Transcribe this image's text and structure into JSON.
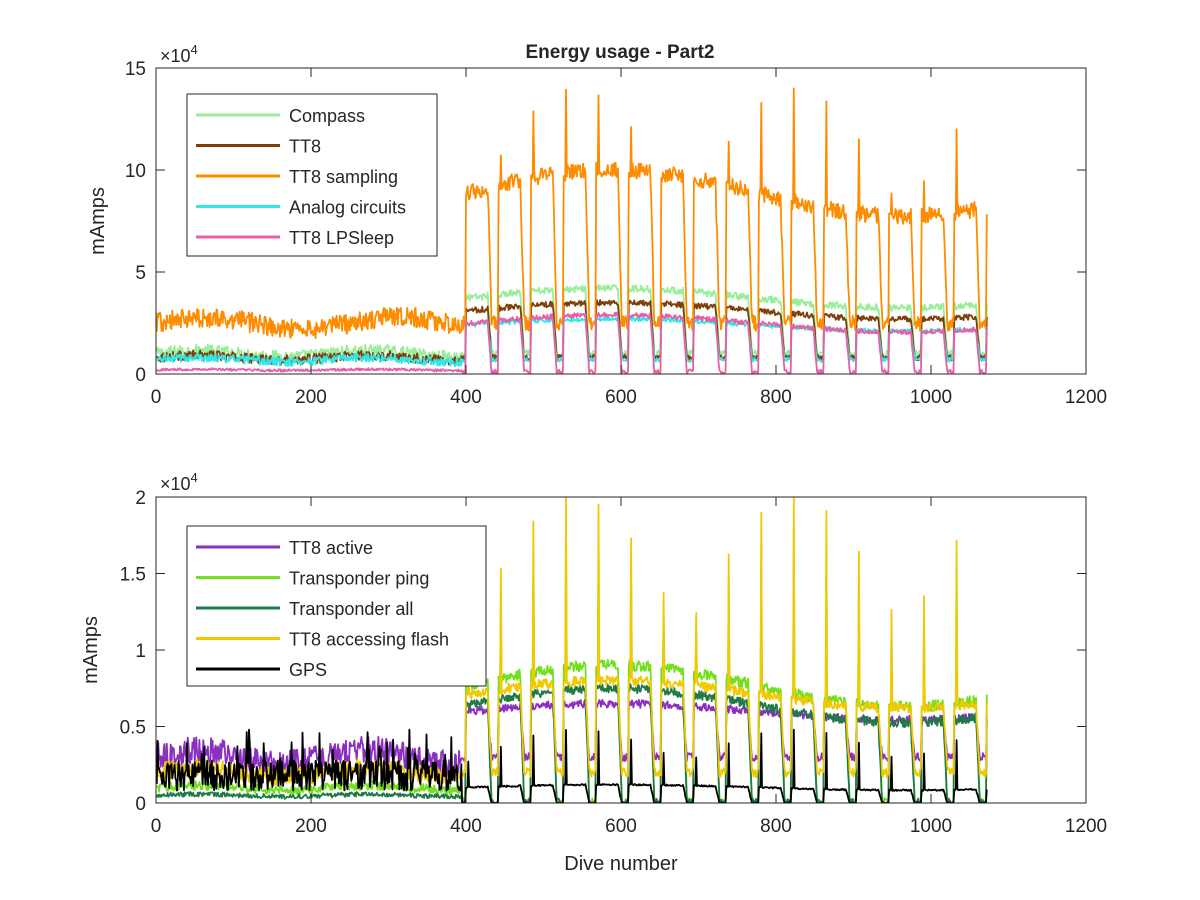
{
  "figure": {
    "background": "#ffffff"
  },
  "chart_data": [
    {
      "type": "line",
      "title": "Energy usage - Part2",
      "xlabel": "",
      "ylabel": "mAmps",
      "xlim": [
        0,
        1200
      ],
      "ylim": [
        0,
        150000
      ],
      "x_ticks": [
        0,
        200,
        400,
        600,
        800,
        1000,
        1200
      ],
      "y_ticks": [
        0,
        50000,
        100000,
        150000
      ],
      "y_tick_labels": [
        "0",
        "5",
        "10",
        "15"
      ],
      "y_exponent_label": "×10",
      "y_exponent_power": "4",
      "grid": false,
      "legend_position": "top-left",
      "dive_range": [
        1,
        1072
      ],
      "series": [
        {
          "name": "Compass",
          "color": "#99ee99",
          "low_phase": 10000,
          "high_phase": 42000,
          "pre_400": 10000
        },
        {
          "name": "TT8",
          "color": "#7f3f0a",
          "low_phase": 8000,
          "high_phase": 35000,
          "pre_400": 8000
        },
        {
          "name": "TT8 sampling",
          "color": "#ff8c00",
          "low_phase": 25000,
          "high_phase": 100000,
          "peak": 140000,
          "pre_400": 25000
        },
        {
          "name": "Analog circuits",
          "color": "#33e6e6",
          "low_phase": 7000,
          "high_phase": 27000,
          "pre_400": 7000
        },
        {
          "name": "TT8 LPSleep",
          "color": "#e95fa6",
          "low_phase": 1000,
          "high_phase": 29000,
          "pre_400": 2000
        }
      ]
    },
    {
      "type": "line",
      "title": "",
      "xlabel": "Dive number",
      "ylabel": "mAmps",
      "xlim": [
        0,
        1200
      ],
      "ylim": [
        0,
        20000
      ],
      "x_ticks": [
        0,
        200,
        400,
        600,
        800,
        1000,
        1200
      ],
      "y_ticks": [
        0,
        5000,
        10000,
        15000,
        20000
      ],
      "y_tick_labels": [
        "0",
        "0.5",
        "1",
        "1.5",
        "2"
      ],
      "y_exponent_label": "×10",
      "y_exponent_power": "4",
      "grid": false,
      "legend_position": "top-left",
      "dive_range": [
        1,
        1072
      ],
      "series": [
        {
          "name": "TT8 active",
          "color": "#8b2fc0",
          "low_phase": 3000,
          "high_phase": 6500,
          "pre_400": 3000
        },
        {
          "name": "Transponder ping",
          "color": "#72e01c",
          "low_phase": 0,
          "high_phase": 9000,
          "peak": 18000,
          "pre_400": 1000
        },
        {
          "name": "Transponder all",
          "color": "#1f7a46",
          "low_phase": 0,
          "high_phase": 7500,
          "pre_400": 500
        },
        {
          "name": "TT8 accessing flash",
          "color": "#f2c800",
          "low_phase": 2000,
          "high_phase": 8000,
          "peak": 20000,
          "pre_400": 2000
        },
        {
          "name": "GPS",
          "color": "#000000",
          "low_phase": 0,
          "high_phase": 1200,
          "peak": 4800,
          "pre_400": 800
        }
      ]
    }
  ]
}
